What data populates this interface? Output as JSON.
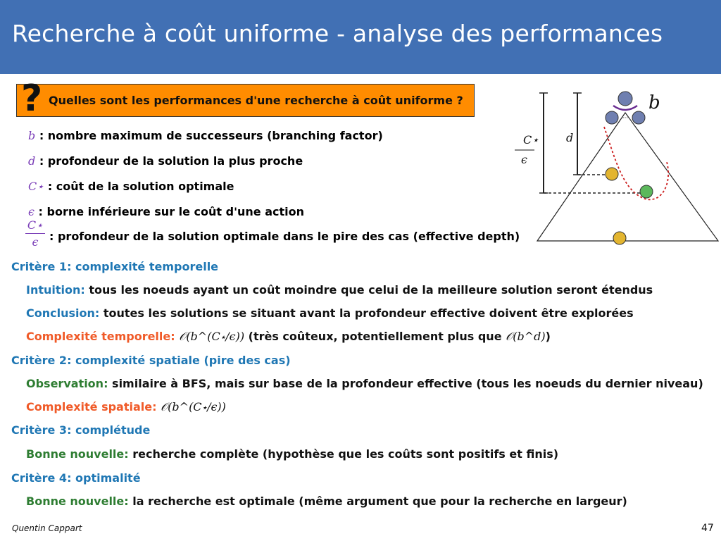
{
  "slide": {
    "title": "Recherche à coût uniforme - analyse des performances",
    "question": {
      "icon": "question-mark-icon",
      "mark": "?",
      "text": "Quelles sont les performances d'une recherche à coût uniforme ?"
    },
    "definitions": [
      {
        "symbol": "b",
        "text": " : nombre maximum de successeurs (branching factor)"
      },
      {
        "symbol": "d",
        "text": " : profondeur de la solution la plus proche"
      },
      {
        "symbol": "C⋆",
        "text": " : coût de la solution optimale"
      },
      {
        "symbol": "ϵ",
        "text": " : borne inférieure sur le coût d'une action"
      },
      {
        "symbol_num": "C⋆",
        "symbol_den": "ϵ",
        "text": " : profondeur de la solution optimale dans le pire des cas (effective depth)"
      }
    ],
    "criteria": [
      {
        "title": "Critère 1: complexité temporelle",
        "lines": [
          {
            "label": "Intuition:",
            "text": " tous les noeuds ayant un coût moindre que celui de la meilleure solution seront étendus"
          },
          {
            "label": "Conclusion:",
            "text": " toutes les solutions se situant avant la profondeur effective doivent être explorées"
          },
          {
            "label": "Complexité temporelle:",
            "math": "𝒪(b^(C⋆/ϵ))",
            "text": " (très coûteux, potentiellement plus que ",
            "math2": "𝒪(b^d)",
            "text2": ")"
          }
        ]
      },
      {
        "title": "Critère 2: complexité spatiale (pire des cas)",
        "lines": [
          {
            "label": "Observation:",
            "text": " similaire à BFS, mais sur base de la profondeur effective (tous les noeuds du dernier niveau)"
          },
          {
            "label": "Complexité spatiale:",
            "math": "𝒪(b^(C⋆/ϵ))"
          }
        ]
      },
      {
        "title": "Critère 3: complétude",
        "lines": [
          {
            "label": "Bonne nouvelle:",
            "text": " recherche complète (hypothèse que les coûts sont positifs et finis)"
          }
        ]
      },
      {
        "title": "Critère 4: optimalité",
        "lines": [
          {
            "label": "Bonne nouvelle:",
            "text": " la recherche est optimale (même argument que pour la recherche en largeur)"
          }
        ]
      }
    ],
    "diagram": {
      "b_label": "b",
      "d_label": "d",
      "c_num": "C⋆",
      "c_den": "ϵ",
      "dots": "···",
      "colors": {
        "root": "#6f7fb0",
        "goal_shallow": "#e3b530",
        "goal_optimal": "#5cb85c",
        "goal_deep": "#e3b530",
        "arc": "#6a2c91",
        "frontier": "#cc1f1f"
      }
    },
    "footer": {
      "author": "Quentin Cappart",
      "page": "47"
    },
    "colors": {
      "header": "#4170b4",
      "question_box": "#ff8c00",
      "criteria": "#1f77b4",
      "good": "#2e7d32",
      "complexity": "#f05a28",
      "symbol": "#7b3fb8"
    }
  }
}
